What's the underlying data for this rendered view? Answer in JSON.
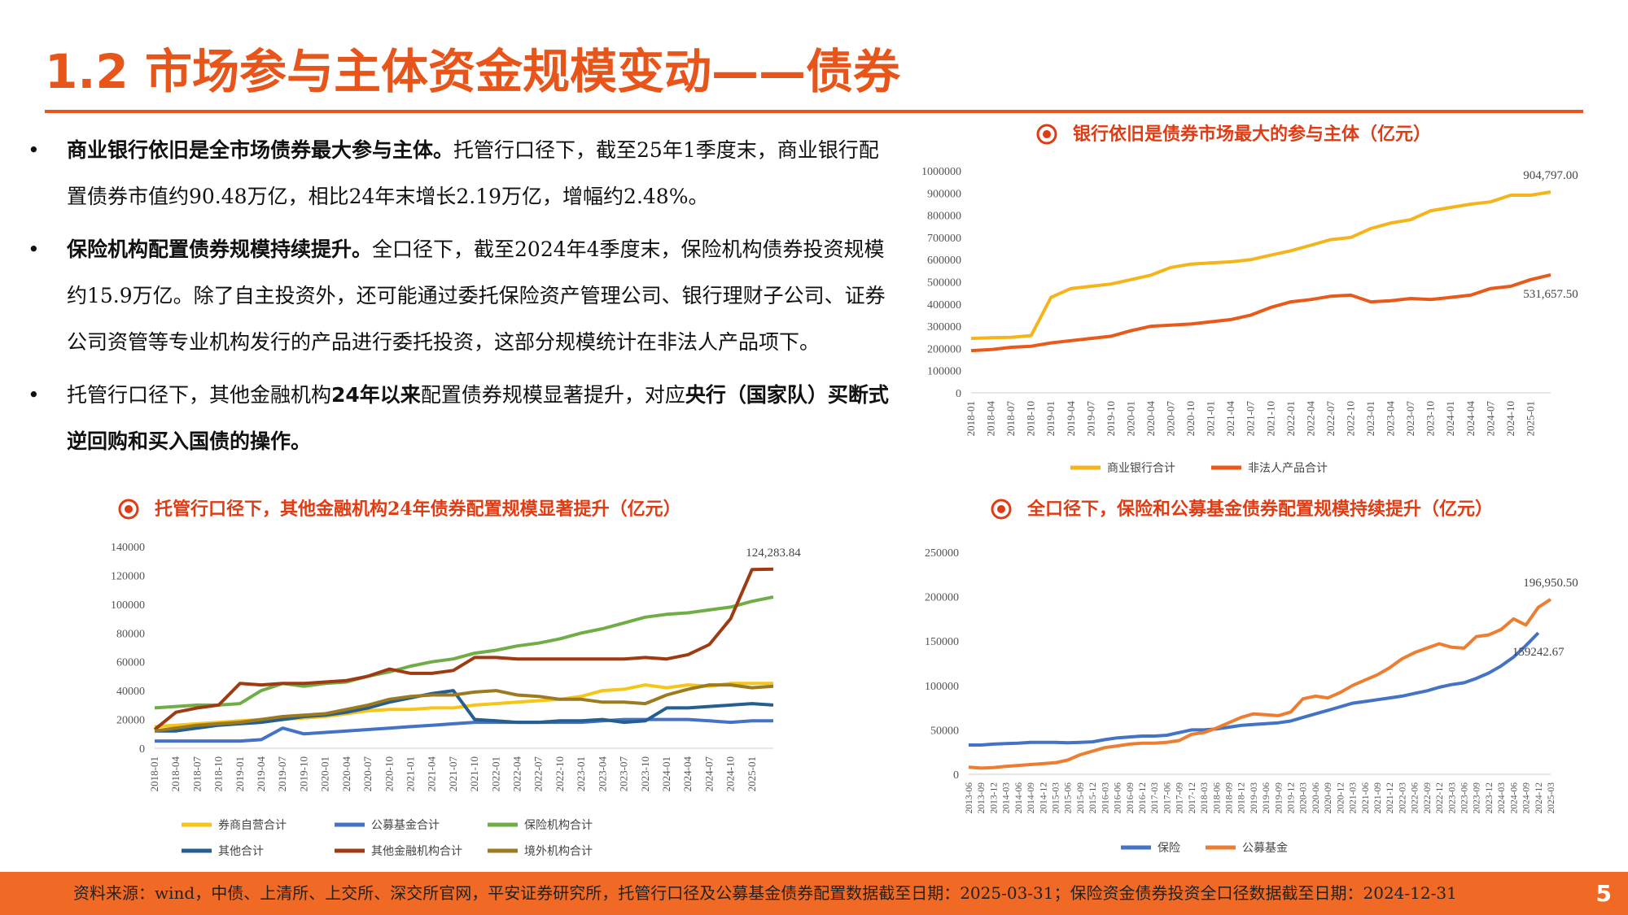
{
  "header": {
    "title": "1.2 市场参与主体资金规模变动——债券"
  },
  "bullets": [
    [
      {
        "text": "商业银行依旧是全市场债券最大参与主体。",
        "bold": true
      },
      {
        "text": "托管行口径下，截至25年1季度末，商业银行配置债券市值约90.48万亿，相比24年末增长2.19万亿，增幅约2.48%。",
        "bold": false
      }
    ],
    [
      {
        "text": "保险机构配置债券规模持续提升。",
        "bold": true
      },
      {
        "text": "全口径下，截至2024年4季度末，保险机构债券投资规模约15.9万亿。除了自主投资外，还可能通过委托保险资产管理公司、银行理财子公司、证券公司资管等专业机构发行的产品进行委托投资，这部分规模统计在非法人产品项下。",
        "bold": false
      }
    ],
    [
      {
        "text": "托管行口径下，其他金融机构",
        "bold": false
      },
      {
        "text": "24年以来",
        "bold": true
      },
      {
        "text": "配置债券规模显著提升，对应",
        "bold": false
      },
      {
        "text": "央行（国家队）买断式逆回购和买入国债的操作。",
        "bold": true
      }
    ]
  ],
  "chart_data": [
    {
      "type": "line",
      "title": "银行依旧是债券市场最大的参与主体（亿元）",
      "categories": [
        "2018-01",
        "2018-04",
        "2018-07",
        "2018-10",
        "2019-01",
        "2019-04",
        "2019-07",
        "2019-10",
        "2020-01",
        "2020-04",
        "2020-07",
        "2020-10",
        "2021-01",
        "2021-04",
        "2021-07",
        "2021-10",
        "2022-01",
        "2022-04",
        "2022-07",
        "2022-10",
        "2023-01",
        "2023-04",
        "2023-07",
        "2023-10",
        "2024-01",
        "2024-04",
        "2024-07",
        "2024-10",
        "2025-01",
        null
      ],
      "ylim": [
        0,
        1000000
      ],
      "yticks": [
        0,
        100000,
        200000,
        300000,
        400000,
        500000,
        600000,
        700000,
        800000,
        900000,
        1000000
      ],
      "series": [
        {
          "name": "商业银行合计",
          "color": "#F4B41A",
          "values": [
            245000,
            248000,
            250000,
            258000,
            430000,
            470000,
            480000,
            490000,
            510000,
            530000,
            565000,
            580000,
            585000,
            590000,
            600000,
            620000,
            640000,
            665000,
            690000,
            700000,
            740000,
            765000,
            780000,
            820000,
            835000,
            850000,
            860000,
            890000,
            890000,
            904797
          ],
          "value_labels": [
            null,
            null,
            null,
            null,
            null,
            null,
            null,
            null,
            null,
            null,
            null,
            null,
            null,
            null,
            null,
            null,
            null,
            null,
            null,
            null,
            null,
            null,
            null,
            null,
            null,
            null,
            null,
            null,
            null,
            "904,797.00"
          ]
        },
        {
          "name": "非法人产品合计",
          "color": "#E8591A",
          "values": [
            190000,
            195000,
            205000,
            210000,
            225000,
            235000,
            245000,
            255000,
            280000,
            300000,
            305000,
            310000,
            320000,
            330000,
            350000,
            385000,
            410000,
            420000,
            435000,
            440000,
            410000,
            415000,
            425000,
            420000,
            430000,
            440000,
            470000,
            480000,
            510000,
            531657.5
          ],
          "value_labels": [
            null,
            null,
            null,
            null,
            null,
            null,
            null,
            null,
            null,
            null,
            null,
            null,
            null,
            null,
            null,
            null,
            null,
            null,
            null,
            null,
            null,
            null,
            null,
            null,
            null,
            null,
            null,
            null,
            null,
            "531,657.50"
          ]
        }
      ]
    },
    {
      "type": "line",
      "title": "托管行口径下，其他金融机构24年债券配置规模显著提升（亿元）",
      "categories": [
        "2018-01",
        "2018-04",
        "2018-07",
        "2018-10",
        "2019-01",
        "2019-04",
        "2019-07",
        "2019-10",
        "2020-01",
        "2020-04",
        "2020-07",
        "2020-10",
        "2021-01",
        "2021-04",
        "2021-07",
        "2021-10",
        "2022-01",
        "2022-04",
        "2022-07",
        "2022-10",
        "2023-01",
        "2023-04",
        "2023-07",
        "2023-10",
        "2024-01",
        "2024-04",
        "2024-07",
        "2024-10",
        "2025-01",
        null
      ],
      "ylim": [
        0,
        140000
      ],
      "yticks": [
        0,
        20000,
        40000,
        60000,
        80000,
        100000,
        120000,
        140000
      ],
      "series": [
        {
          "name": "券商自营合计",
          "color": "#F5C518",
          "values": [
            15000,
            16000,
            17000,
            18000,
            19000,
            20000,
            20000,
            21000,
            22000,
            24000,
            26000,
            27000,
            27000,
            28000,
            28000,
            30000,
            31000,
            32000,
            33000,
            34000,
            36000,
            40000,
            41000,
            44000,
            42000,
            44000,
            43000,
            45000,
            45000,
            45000
          ]
        },
        {
          "name": "公募基金合计",
          "color": "#4472C4",
          "values": [
            5000,
            5000,
            5000,
            5000,
            5000,
            6000,
            14000,
            10000,
            11000,
            12000,
            13000,
            14000,
            15000,
            16000,
            17000,
            18000,
            18000,
            18000,
            18000,
            18000,
            18000,
            19000,
            20000,
            20000,
            20000,
            20000,
            19000,
            18000,
            19000,
            19000
          ]
        },
        {
          "name": "保险机构合计",
          "color": "#70AD47",
          "values": [
            28000,
            29000,
            30000,
            30000,
            31000,
            40000,
            45000,
            43000,
            45000,
            46000,
            50000,
            53000,
            57000,
            60000,
            62000,
            66000,
            68000,
            71000,
            73000,
            76000,
            80000,
            83000,
            87000,
            91000,
            93000,
            94000,
            96000,
            98000,
            102000,
            105000
          ]
        },
        {
          "name": "其他合计",
          "color": "#255E91",
          "values": [
            12000,
            12000,
            14000,
            16000,
            17000,
            18000,
            20000,
            22000,
            23000,
            25000,
            28000,
            32000,
            35000,
            38000,
            40000,
            20000,
            19000,
            18000,
            18000,
            19000,
            19000,
            20000,
            18000,
            19000,
            28000,
            28000,
            29000,
            30000,
            31000,
            30000
          ]
        },
        {
          "name": "其他金融机构合计",
          "color": "#9E3B12",
          "values": [
            13000,
            25000,
            28000,
            30000,
            45000,
            44000,
            45000,
            45000,
            46000,
            47000,
            50000,
            55000,
            52000,
            52000,
            54000,
            63000,
            63000,
            62000,
            62000,
            62000,
            62000,
            62000,
            62000,
            63000,
            62000,
            65000,
            72000,
            90000,
            124000,
            124283.84
          ],
          "value_labels": [
            null,
            null,
            null,
            null,
            null,
            null,
            null,
            null,
            null,
            null,
            null,
            null,
            null,
            null,
            null,
            null,
            null,
            null,
            null,
            null,
            null,
            null,
            null,
            null,
            null,
            null,
            null,
            null,
            null,
            "124,283.84"
          ]
        },
        {
          "name": "境外机构合计",
          "color": "#9C7A20",
          "values": [
            12000,
            14000,
            16000,
            17000,
            18000,
            20000,
            22000,
            23000,
            24000,
            27000,
            30000,
            34000,
            36000,
            37000,
            37000,
            39000,
            40000,
            37000,
            36000,
            34000,
            34000,
            32000,
            32000,
            31000,
            37000,
            41000,
            44000,
            44000,
            42000,
            43000
          ]
        }
      ]
    },
    {
      "type": "line",
      "title": "全口径下，保险和公募基金债券配置规模持续提升（亿元）",
      "categories": [
        "2013-06",
        "2013-09",
        "2013-12",
        "2014-03",
        "2014-06",
        "2014-09",
        "2014-12",
        "2015-03",
        "2015-06",
        "2015-09",
        "2015-12",
        "2016-03",
        "2016-06",
        "2016-09",
        "2016-12",
        "2017-03",
        "2017-06",
        "2017-09",
        "2017-12",
        "2018-03",
        "2018-06",
        "2018-09",
        "2018-12",
        "2019-03",
        "2019-06",
        "2019-09",
        "2019-12",
        "2020-03",
        "2020-06",
        "2020-09",
        "2020-12",
        "2021-03",
        "2021-06",
        "2021-09",
        "2021-12",
        "2022-03",
        "2022-06",
        "2022-09",
        "2022-12",
        "2023-03",
        "2023-06",
        "2023-09",
        "2023-12",
        "2024-03",
        "2024-06",
        "2024-09",
        "2024-12",
        "2025-03"
      ],
      "ylim": [
        0,
        250000
      ],
      "yticks": [
        0,
        50000,
        100000,
        150000,
        200000,
        250000
      ],
      "series": [
        {
          "name": "保险",
          "color": "#4472C4",
          "values": [
            33000,
            33000,
            34000,
            34500,
            35000,
            36000,
            36000,
            36000,
            35500,
            36000,
            36500,
            39000,
            41000,
            42000,
            43000,
            43000,
            44000,
            47000,
            50000,
            50000,
            51000,
            53000,
            55000,
            56000,
            57000,
            58000,
            60000,
            64000,
            68000,
            72000,
            76000,
            80000,
            82000,
            84000,
            86000,
            88000,
            91000,
            94000,
            98000,
            101000,
            103000,
            108000,
            114000,
            122000,
            132000,
            145000,
            159242.67,
            null
          ],
          "value_labels": [
            null,
            null,
            null,
            null,
            null,
            null,
            null,
            null,
            null,
            null,
            null,
            null,
            null,
            null,
            null,
            null,
            null,
            null,
            null,
            null,
            null,
            null,
            null,
            null,
            null,
            null,
            null,
            null,
            null,
            null,
            null,
            null,
            null,
            null,
            null,
            null,
            null,
            null,
            null,
            null,
            null,
            null,
            null,
            null,
            null,
            null,
            "159242.67",
            null
          ]
        },
        {
          "name": "公募基金",
          "color": "#ED7D31",
          "values": [
            8000,
            7000,
            7500,
            9000,
            10000,
            11000,
            12000,
            13000,
            16000,
            22000,
            26000,
            30000,
            32000,
            34000,
            35000,
            35000,
            36000,
            38000,
            45000,
            47000,
            52000,
            58000,
            64000,
            68000,
            67000,
            66000,
            70000,
            85000,
            88000,
            86000,
            92000,
            100000,
            106000,
            112000,
            120000,
            130000,
            137000,
            142000,
            147000,
            143000,
            142000,
            155000,
            157000,
            163000,
            175000,
            168000,
            188000,
            196950.5
          ],
          "value_labels": [
            null,
            null,
            null,
            null,
            null,
            null,
            null,
            null,
            null,
            null,
            null,
            null,
            null,
            null,
            null,
            null,
            null,
            null,
            null,
            null,
            null,
            null,
            null,
            null,
            null,
            null,
            null,
            null,
            null,
            null,
            null,
            null,
            null,
            null,
            null,
            null,
            null,
            null,
            null,
            null,
            null,
            null,
            null,
            null,
            null,
            null,
            null,
            "196,950.50"
          ]
        }
      ]
    }
  ],
  "footer": {
    "source": "资料来源：wind，中债、上清所、上交所、深交所官网，平安证券研究所，托管行口径及公募基金债券配置数据截至日期：2025-03-31；保险资金债券投资全口径数据截至日期：2024-12-31",
    "page": "5"
  }
}
